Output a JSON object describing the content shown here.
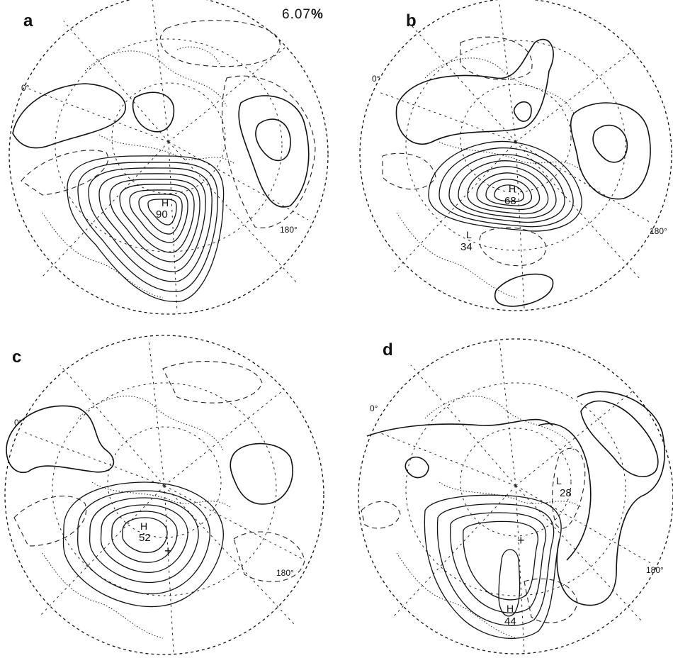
{
  "figure": {
    "variance_label": "6.07",
    "variance_unit": "%"
  },
  "panels": [
    {
      "letter": "a",
      "lon_0_label": "0°",
      "lon_180_label": "180°",
      "centers": [
        {
          "type": "H",
          "value": "90"
        }
      ]
    },
    {
      "letter": "b",
      "lon_0_label": "0°",
      "lon_180_label": "180°",
      "centers": [
        {
          "type": "H",
          "value": "68"
        },
        {
          "type": "L",
          "value": "34"
        }
      ]
    },
    {
      "letter": "c",
      "lon_0_label": "0°",
      "lon_180_label": "180°",
      "centers": [
        {
          "type": "H",
          "value": "52"
        }
      ]
    },
    {
      "letter": "d",
      "lon_0_label": "0°",
      "lon_180_label": "180°",
      "centers": [
        {
          "type": "H",
          "value": "44"
        },
        {
          "type": "L",
          "value": "28"
        }
      ]
    }
  ],
  "colors": {
    "ink": "#111111",
    "background": "#ffffff"
  }
}
